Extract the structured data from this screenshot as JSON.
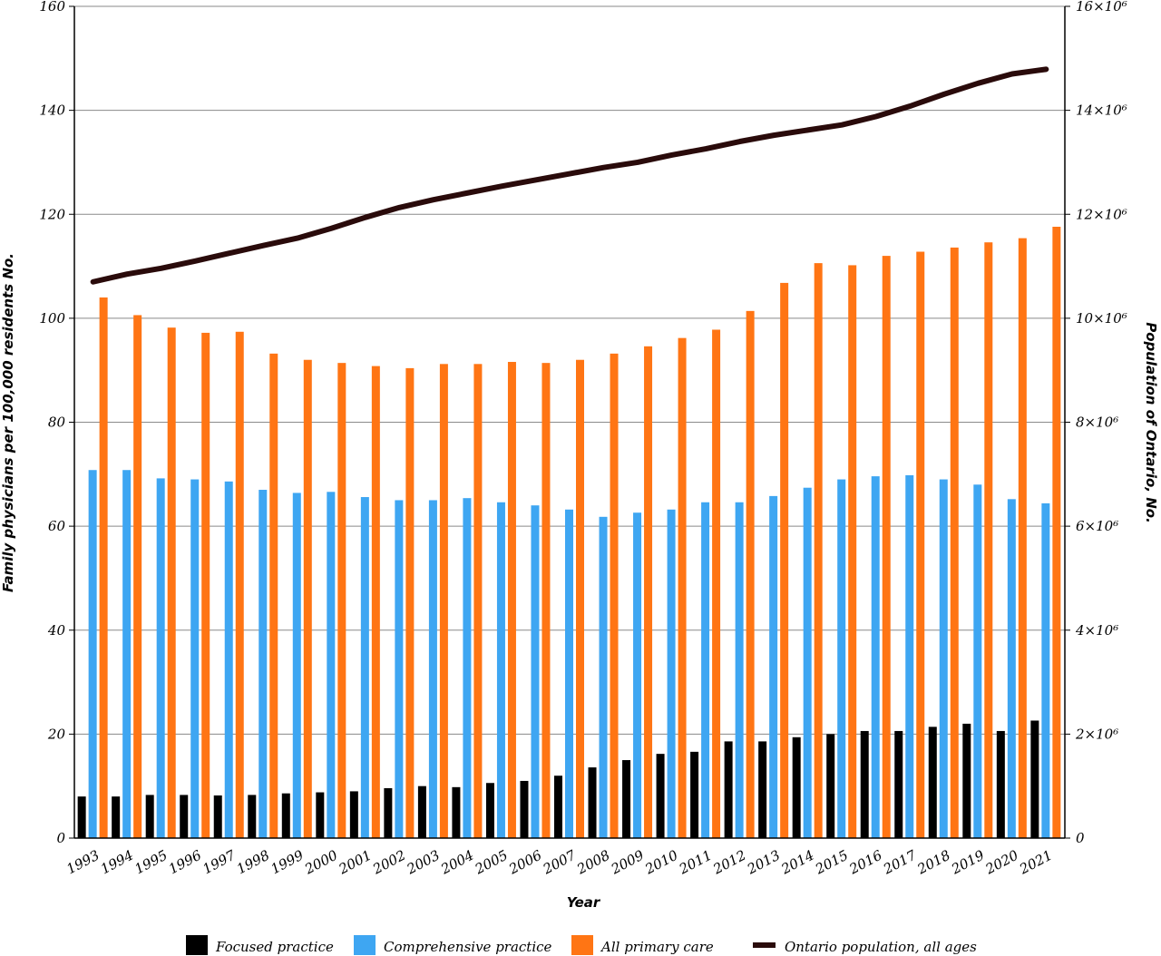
{
  "chart_data": {
    "type": "bar",
    "categories": [
      "1993",
      "1994",
      "1995",
      "1996",
      "1997",
      "1998",
      "1999",
      "2000",
      "2001",
      "2002",
      "2003",
      "2004",
      "2005",
      "2006",
      "2007",
      "2008",
      "2009",
      "2010",
      "2011",
      "2012",
      "2013",
      "2014",
      "2015",
      "2016",
      "2017",
      "2018",
      "2019",
      "2020",
      "2021"
    ],
    "xlabel": "Year",
    "ylabel": "Family physicians per 100,000 residents No.",
    "y2label": "Population of Ontario, No.",
    "ylim": [
      0,
      160
    ],
    "yticks": [
      "0",
      "20",
      "40",
      "60",
      "80",
      "100",
      "120",
      "140",
      "160"
    ],
    "y2lim": [
      0,
      16000000
    ],
    "y2ticks": [
      "0",
      "2×10⁶",
      "4×10⁶",
      "6×10⁶",
      "8×10⁶",
      "10×10⁶",
      "12×10⁶",
      "14×10⁶",
      "16×10⁶"
    ],
    "grid": true,
    "legend_position": "bottom",
    "series": [
      {
        "name": "Focused practice",
        "kind": "bar",
        "axis": "left",
        "color": "#000000",
        "values": [
          8.0,
          8.0,
          8.3,
          8.3,
          8.2,
          8.3,
          8.6,
          8.8,
          9.0,
          9.6,
          10.0,
          9.8,
          10.6,
          11.0,
          12.0,
          13.6,
          15.0,
          16.2,
          16.6,
          18.6,
          18.6,
          19.4,
          20.0,
          20.6,
          20.6,
          21.4,
          22.0,
          20.6,
          22.6
        ]
      },
      {
        "name": "Comprehensive practice",
        "kind": "bar",
        "axis": "left",
        "color": "#3ea6f2",
        "values": [
          70.8,
          70.8,
          69.2,
          69.0,
          68.6,
          67.0,
          66.4,
          66.6,
          65.6,
          65.0,
          65.0,
          65.4,
          64.6,
          64.0,
          63.2,
          61.8,
          62.6,
          63.2,
          64.6,
          64.6,
          65.8,
          67.4,
          69.0,
          69.6,
          69.8,
          69.0,
          68.0,
          65.2,
          64.4
        ]
      },
      {
        "name": "All primary care",
        "kind": "bar",
        "axis": "left",
        "color": "#ff7514",
        "values": [
          104.0,
          100.6,
          98.2,
          97.2,
          97.4,
          93.2,
          92.0,
          91.4,
          90.8,
          90.4,
          91.2,
          91.2,
          91.6,
          91.4,
          92.0,
          93.2,
          94.6,
          96.2,
          97.8,
          101.4,
          106.8,
          110.6,
          110.2,
          112.0,
          112.8,
          113.6,
          114.6,
          115.4,
          117.6
        ]
      },
      {
        "name": "Ontario population, all ages",
        "kind": "line",
        "axis": "right",
        "color": "#2a0b0b",
        "values": [
          10700000,
          10850000,
          10960000,
          11100000,
          11250000,
          11400000,
          11540000,
          11730000,
          11940000,
          12130000,
          12280000,
          12410000,
          12540000,
          12660000,
          12780000,
          12900000,
          13000000,
          13140000,
          13260000,
          13400000,
          13520000,
          13620000,
          13720000,
          13880000,
          14080000,
          14310000,
          14520000,
          14700000,
          14790000
        ]
      }
    ]
  }
}
